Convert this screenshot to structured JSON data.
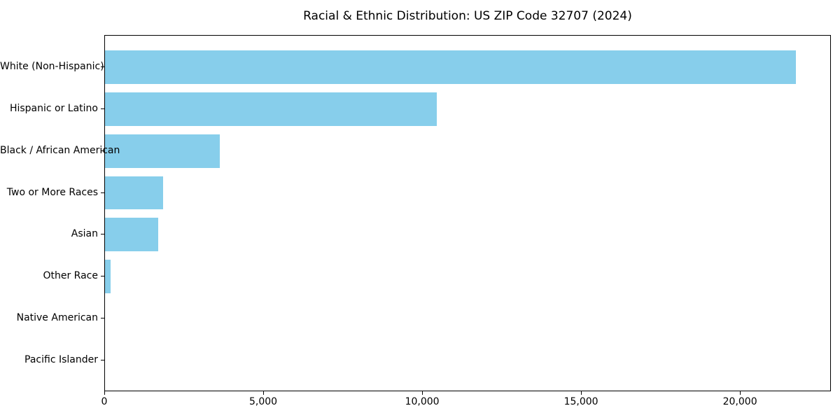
{
  "chart_data": {
    "type": "bar",
    "orientation": "horizontal",
    "title": "Racial & Ethnic Distribution: US ZIP Code 32707 (2024)",
    "categories": [
      "White (Non-Hispanic)",
      "Hispanic or Latino",
      "Black / African American",
      "Two or More Races",
      "Asian",
      "Other Race",
      "Native American",
      "Pacific Islander"
    ],
    "values": [
      21740,
      10440,
      3610,
      1830,
      1670,
      175,
      0,
      0
    ],
    "xlabel": "",
    "ylabel": "",
    "xlim": [
      0,
      22860
    ],
    "x_ticks": [
      0,
      5000,
      10000,
      15000,
      20000
    ],
    "x_tick_labels": [
      "0",
      "5,000",
      "10,000",
      "15,000",
      "20,000"
    ],
    "bar_color": "#87CEEB",
    "background_color": "#ffffff",
    "text_color": "#000000",
    "grid": false,
    "legend": null
  }
}
